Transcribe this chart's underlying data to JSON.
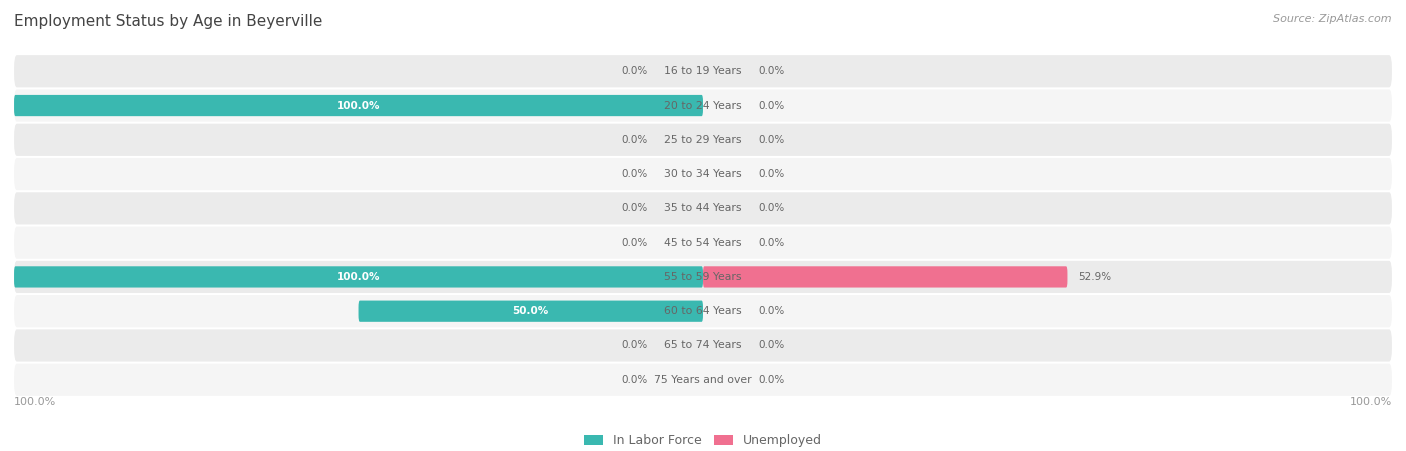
{
  "title": "Employment Status by Age in Beyerville",
  "source": "Source: ZipAtlas.com",
  "categories": [
    "16 to 19 Years",
    "20 to 24 Years",
    "25 to 29 Years",
    "30 to 34 Years",
    "35 to 44 Years",
    "45 to 54 Years",
    "55 to 59 Years",
    "60 to 64 Years",
    "65 to 74 Years",
    "75 Years and over"
  ],
  "labor_force": [
    0.0,
    100.0,
    0.0,
    0.0,
    0.0,
    0.0,
    100.0,
    50.0,
    0.0,
    0.0
  ],
  "unemployed": [
    0.0,
    0.0,
    0.0,
    0.0,
    0.0,
    0.0,
    52.9,
    0.0,
    0.0,
    0.0
  ],
  "labor_force_color": "#3ab8b0",
  "unemployed_color": "#f07090",
  "row_bg_even": "#ebebeb",
  "row_bg_odd": "#f5f5f5",
  "label_color_dark": "#666666",
  "label_color_white": "#ffffff",
  "title_color": "#444444",
  "source_color": "#999999",
  "axis_label_color": "#999999",
  "legend_labels": [
    "In Labor Force",
    "Unemployed"
  ],
  "background_color": "#ffffff"
}
